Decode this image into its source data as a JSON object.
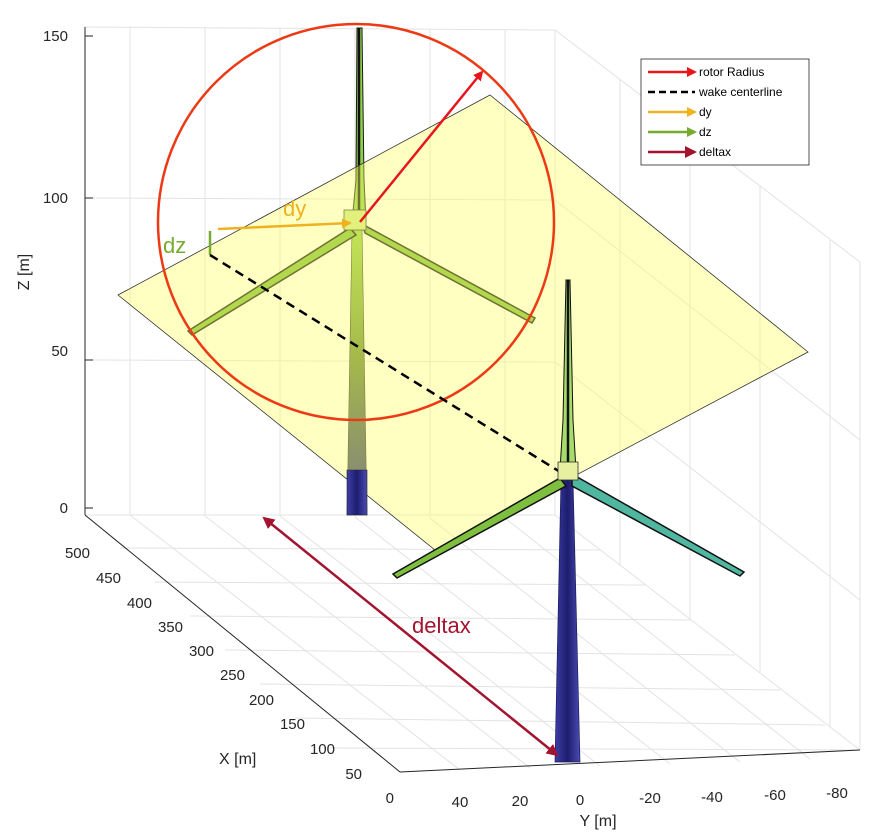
{
  "axes": {
    "z_label": "Z [m]",
    "x_label": "X [m]",
    "y_label": "Y [m]",
    "z_ticks": [
      "150",
      "100",
      "50",
      "0"
    ],
    "x_ticks": [
      "500",
      "450",
      "400",
      "350",
      "300",
      "250",
      "200",
      "150",
      "100",
      "50",
      "0"
    ],
    "y_ticks": [
      "40",
      "20",
      "0",
      "-20",
      "-40",
      "-60",
      "-80"
    ],
    "grid": true
  },
  "legend": {
    "placement": "top-right",
    "entries": [
      {
        "label": "rotor Radius",
        "color": "#e8151c",
        "style": "arrow"
      },
      {
        "label": "wake centerline",
        "color": "#000000",
        "style": "dashed"
      },
      {
        "label": "dy",
        "color": "#eeb120",
        "style": "arrow"
      },
      {
        "label": "dz",
        "color": "#76ab2f",
        "style": "arrow"
      },
      {
        "label": "deltax",
        "color": "#a2142f",
        "style": "arrow"
      }
    ]
  },
  "annotations": {
    "dy": "dy",
    "dz": "dz",
    "deltax": "deltax"
  },
  "colors": {
    "rotor_radius": "#e8151c",
    "wake_plane": "#ffff99",
    "dy": "#eeb120",
    "dz": "#76ab2f",
    "deltax": "#a2142f",
    "tower": "#2a2a8c",
    "blade": "#7fbf3f"
  }
}
